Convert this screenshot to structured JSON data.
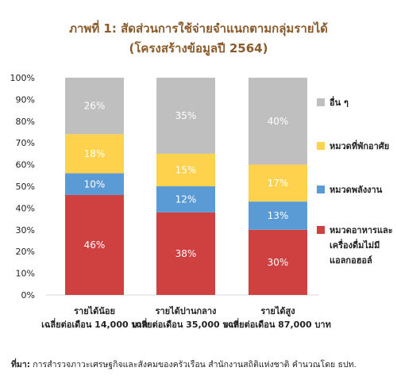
{
  "chart_data": {
    "type": "bar",
    "stacked": true,
    "title": "ภาพที่ 1: สัดส่วนการใช้จ่ายจำแนกตามกลุ่มรายได้",
    "subtitle": "(โครงสร้างข้อมูลปี 2564)",
    "categories": [
      {
        "line1": "รายได้น้อย",
        "line2": "เฉลี่ยต่อเดือน 14,000 บาท"
      },
      {
        "line1": "รายได้ปานกลาง",
        "line2": "เฉลี่ยต่อเดือน 35,000 บาท"
      },
      {
        "line1": "รายได้สูง",
        "line2": "เฉลี่ยต่อเดือน 87,000 บาท"
      }
    ],
    "series": [
      {
        "name": "หมวดอาหารและเครื่องดื่มไม่มีแอลกอฮอล์",
        "legend_lines": [
          "หมวดอาหารและ",
          "เครื่องดื่มไม่มี",
          "แอลกอฮอล์"
        ],
        "color": "#cf4040",
        "values": [
          46,
          38,
          30
        ]
      },
      {
        "name": "หมวดพลังงาน",
        "legend_lines": [
          "หมวดพลังงาน"
        ],
        "color": "#5b9bd5",
        "values": [
          10,
          12,
          13
        ]
      },
      {
        "name": "หมวดที่พักอาศัย",
        "legend_lines": [
          "หมวดที่พักอาศัย"
        ],
        "color": "#ffd24d",
        "values": [
          18,
          15,
          17
        ]
      },
      {
        "name": "อื่น ๆ",
        "legend_lines": [
          "อื่น ๆ"
        ],
        "color": "#bfbfbf",
        "values": [
          26,
          35,
          40
        ]
      }
    ],
    "value_suffix": "%",
    "yticks": [
      "0%",
      "10%",
      "20%",
      "30%",
      "40%",
      "50%",
      "60%",
      "70%",
      "80%",
      "90%",
      "100%"
    ],
    "ylim": [
      0,
      100
    ],
    "legend_position": "right"
  },
  "source": {
    "label": "ที่มา:",
    "text": "การสำรวจภาวะเศรษฐกิจและสังคมของครัวเรือน สำนักงานสถิติแห่งชาติ คำนวณโดย ธปท."
  }
}
